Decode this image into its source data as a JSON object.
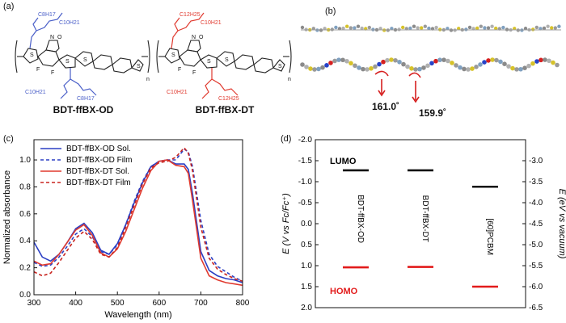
{
  "panels": {
    "a": {
      "label": "(a)"
    },
    "b": {
      "label": "(b)",
      "angles": [
        "161.0˚",
        "159.9˚"
      ]
    },
    "c": {
      "label": "(c)"
    },
    "d": {
      "label": "(d)"
    }
  },
  "molecules": [
    {
      "name": "BDT-ffBX-OD",
      "chain_color": "#4a5fc8",
      "chain_labels": [
        "C8H17",
        "C10H21",
        "C10H21",
        "C8H17"
      ],
      "atoms": {
        "S": "S",
        "N": "N",
        "O": "O",
        "F": "F",
        "n": "n"
      }
    },
    {
      "name": "BDT-ffBX-DT",
      "chain_color": "#e03a2f",
      "chain_labels": [
        "C12H25",
        "C10H21",
        "C10H21",
        "C12H25"
      ],
      "atoms": {
        "S": "S",
        "N": "N",
        "O": "O",
        "F": "F",
        "n": "n"
      }
    }
  ],
  "chart_data": [
    {
      "type": "line",
      "xlabel": "Wavelength (nm)",
      "ylabel": "Normalized absorbance",
      "xlim": [
        300,
        800
      ],
      "ylim": [
        0,
        1.15
      ],
      "xticks": [
        300,
        400,
        500,
        600,
        700,
        800
      ],
      "yticks": [
        0.0,
        0.2,
        0.4,
        0.6,
        0.8,
        1.0
      ],
      "legend_position": "top-left",
      "series": [
        {
          "name": "BDT-ffBX-OD Sol.",
          "color": "#2b3fc4",
          "dash": "solid",
          "x": [
            300,
            320,
            340,
            360,
            380,
            400,
            420,
            440,
            460,
            480,
            500,
            520,
            540,
            560,
            580,
            600,
            620,
            640,
            660,
            670,
            680,
            700,
            720,
            740,
            760,
            780,
            800
          ],
          "y": [
            0.39,
            0.28,
            0.25,
            0.3,
            0.39,
            0.49,
            0.53,
            0.46,
            0.33,
            0.3,
            0.38,
            0.52,
            0.68,
            0.83,
            0.95,
            0.99,
            1.0,
            0.97,
            0.97,
            0.93,
            0.75,
            0.32,
            0.18,
            0.14,
            0.12,
            0.11,
            0.09
          ]
        },
        {
          "name": "BDT-ffBX-OD Film",
          "color": "#2b3fc4",
          "dash": "dashed",
          "x": [
            300,
            320,
            340,
            360,
            380,
            400,
            420,
            440,
            460,
            480,
            500,
            520,
            540,
            560,
            580,
            600,
            620,
            640,
            660,
            670,
            680,
            700,
            720,
            740,
            760,
            780,
            800
          ],
          "y": [
            0.24,
            0.21,
            0.22,
            0.28,
            0.36,
            0.45,
            0.49,
            0.43,
            0.32,
            0.3,
            0.37,
            0.52,
            0.69,
            0.84,
            0.95,
            0.99,
            1.0,
            1.0,
            1.08,
            1.06,
            0.95,
            0.55,
            0.3,
            0.21,
            0.17,
            0.13,
            0.1
          ]
        },
        {
          "name": "BDT-ffBX-DT Sol.",
          "color": "#e03a2f",
          "dash": "solid",
          "x": [
            300,
            320,
            340,
            360,
            380,
            400,
            420,
            440,
            460,
            480,
            500,
            520,
            540,
            560,
            580,
            600,
            620,
            640,
            660,
            670,
            680,
            700,
            720,
            740,
            760,
            780,
            800
          ],
          "y": [
            0.25,
            0.22,
            0.23,
            0.3,
            0.39,
            0.48,
            0.52,
            0.44,
            0.31,
            0.28,
            0.34,
            0.47,
            0.63,
            0.79,
            0.92,
            0.99,
            1.0,
            0.96,
            0.95,
            0.9,
            0.7,
            0.27,
            0.14,
            0.11,
            0.09,
            0.08,
            0.07
          ]
        },
        {
          "name": "BDT-ffBX-DT Film",
          "color": "#c8241f",
          "dash": "dashed",
          "x": [
            300,
            320,
            340,
            360,
            380,
            400,
            420,
            440,
            460,
            480,
            500,
            520,
            540,
            560,
            580,
            600,
            620,
            640,
            660,
            670,
            680,
            700,
            720,
            740,
            760,
            780,
            800
          ],
          "y": [
            0.17,
            0.14,
            0.16,
            0.24,
            0.33,
            0.42,
            0.47,
            0.41,
            0.3,
            0.28,
            0.35,
            0.5,
            0.66,
            0.82,
            0.94,
            0.98,
            0.99,
            1.02,
            1.09,
            1.05,
            0.92,
            0.5,
            0.27,
            0.19,
            0.15,
            0.12,
            0.1
          ]
        }
      ]
    },
    {
      "type": "scatter",
      "ylabel_left": "E (V vs Fc/Fc⁺)",
      "ylabel_right": "E (eV vs vacuum)",
      "ylim_left": [
        -2.0,
        2.0
      ],
      "ylim_right": [
        -2.5,
        -6.5
      ],
      "yticks_left": [
        "-2.0",
        "-1.5",
        "-1.0",
        "-0.5",
        "0.0",
        "0.5",
        "1.0",
        "1.5",
        "2.0"
      ],
      "yticks_right": [
        "-3.0",
        "-3.5",
        "-4.0",
        "-4.5",
        "-5.0",
        "-5.5",
        "-6.0",
        "-6.5"
      ],
      "lumo_label": "LUMO",
      "homo_label": "HOMO",
      "lumo_color": "#111111",
      "homo_color": "#e21b1b",
      "materials": [
        {
          "name": "BDT-ffBX-OD",
          "lumo": -1.27,
          "homo": 1.04
        },
        {
          "name": "BDT-ffBX-DT",
          "lumo": -1.27,
          "homo": 1.03
        },
        {
          "name": "[60]PCBM",
          "lumo": -0.88,
          "homo": 1.5
        }
      ]
    }
  ]
}
